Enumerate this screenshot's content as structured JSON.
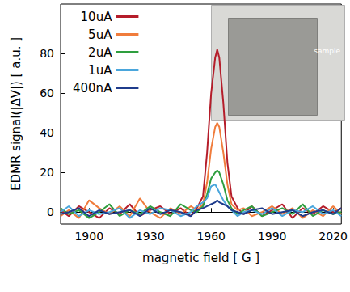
{
  "chart_data": {
    "type": "line",
    "x_label": "magnetic field [ G ]",
    "y_label": "EDMR signal(|ΔV|) [ a.u. ]",
    "x": [
      1886,
      1890,
      1895,
      1900,
      1905,
      1910,
      1915,
      1920,
      1925,
      1930,
      1935,
      1940,
      1945,
      1950,
      1953,
      1956,
      1958,
      1960,
      1962,
      1963,
      1964,
      1966,
      1968,
      1970,
      1973,
      1976,
      1980,
      1985,
      1990,
      1995,
      2000,
      2005,
      2010,
      2015,
      2020,
      2024
    ],
    "series": [
      {
        "name": "10uA",
        "color": "#b51d2a",
        "values": [
          1,
          -2,
          3,
          0,
          -3,
          2,
          -1,
          4,
          -2,
          1,
          3,
          -1,
          2,
          -2,
          2,
          8,
          30,
          60,
          78,
          82,
          78,
          55,
          25,
          8,
          2,
          -1,
          3,
          -2,
          1,
          4,
          -3,
          2,
          -1,
          3,
          0,
          2
        ]
      },
      {
        "name": "5uA",
        "color": "#f07c3c",
        "values": [
          -2,
          1,
          -3,
          6,
          2,
          -1,
          3,
          -2,
          7,
          0,
          -3,
          2,
          -1,
          3,
          1,
          4,
          15,
          32,
          43,
          45,
          43,
          30,
          14,
          4,
          1,
          2,
          -2,
          0,
          3,
          -1,
          2,
          -3,
          1,
          -2,
          3,
          -1
        ]
      },
      {
        "name": "2uA",
        "color": "#2e9e3e",
        "values": [
          2,
          -1,
          1,
          -3,
          0,
          4,
          -2,
          1,
          -1,
          3,
          0,
          -2,
          4,
          1,
          0,
          3,
          9,
          17,
          20,
          21,
          20,
          14,
          6,
          2,
          -1,
          1,
          3,
          -2,
          0,
          2,
          -1,
          4,
          -2,
          1,
          -1,
          0
        ]
      },
      {
        "name": "1uA",
        "color": "#4aa6dc",
        "values": [
          0,
          3,
          -2,
          1,
          -1,
          0,
          2,
          -3,
          1,
          -1,
          2,
          1,
          -2,
          0,
          3,
          5,
          7,
          13,
          14,
          12,
          10,
          6,
          3,
          1,
          -2,
          0,
          1,
          -1,
          2,
          -2,
          1,
          0,
          3,
          -1,
          1,
          -2
        ]
      },
      {
        "name": "400nA",
        "color": "#1f3c8c",
        "values": [
          -1,
          0,
          2,
          -2,
          1,
          -1,
          0,
          1,
          -2,
          2,
          -1,
          1,
          0,
          -2,
          1,
          2,
          3,
          4,
          5,
          6,
          5,
          4,
          3,
          1,
          0,
          -1,
          1,
          2,
          -1,
          0,
          1,
          -2,
          0,
          1,
          -1,
          2
        ]
      }
    ],
    "xlim": [
      1886,
      2024
    ],
    "xticks": [
      1900,
      1930,
      1960,
      1990,
      2020
    ],
    "ylim": [
      -6,
      105
    ],
    "yticks": [
      0,
      20,
      40,
      60,
      80
    ],
    "grid": false,
    "legend": "upper left",
    "marker": "none",
    "line_style": "solid",
    "annotations": [
      "sample"
    ]
  }
}
